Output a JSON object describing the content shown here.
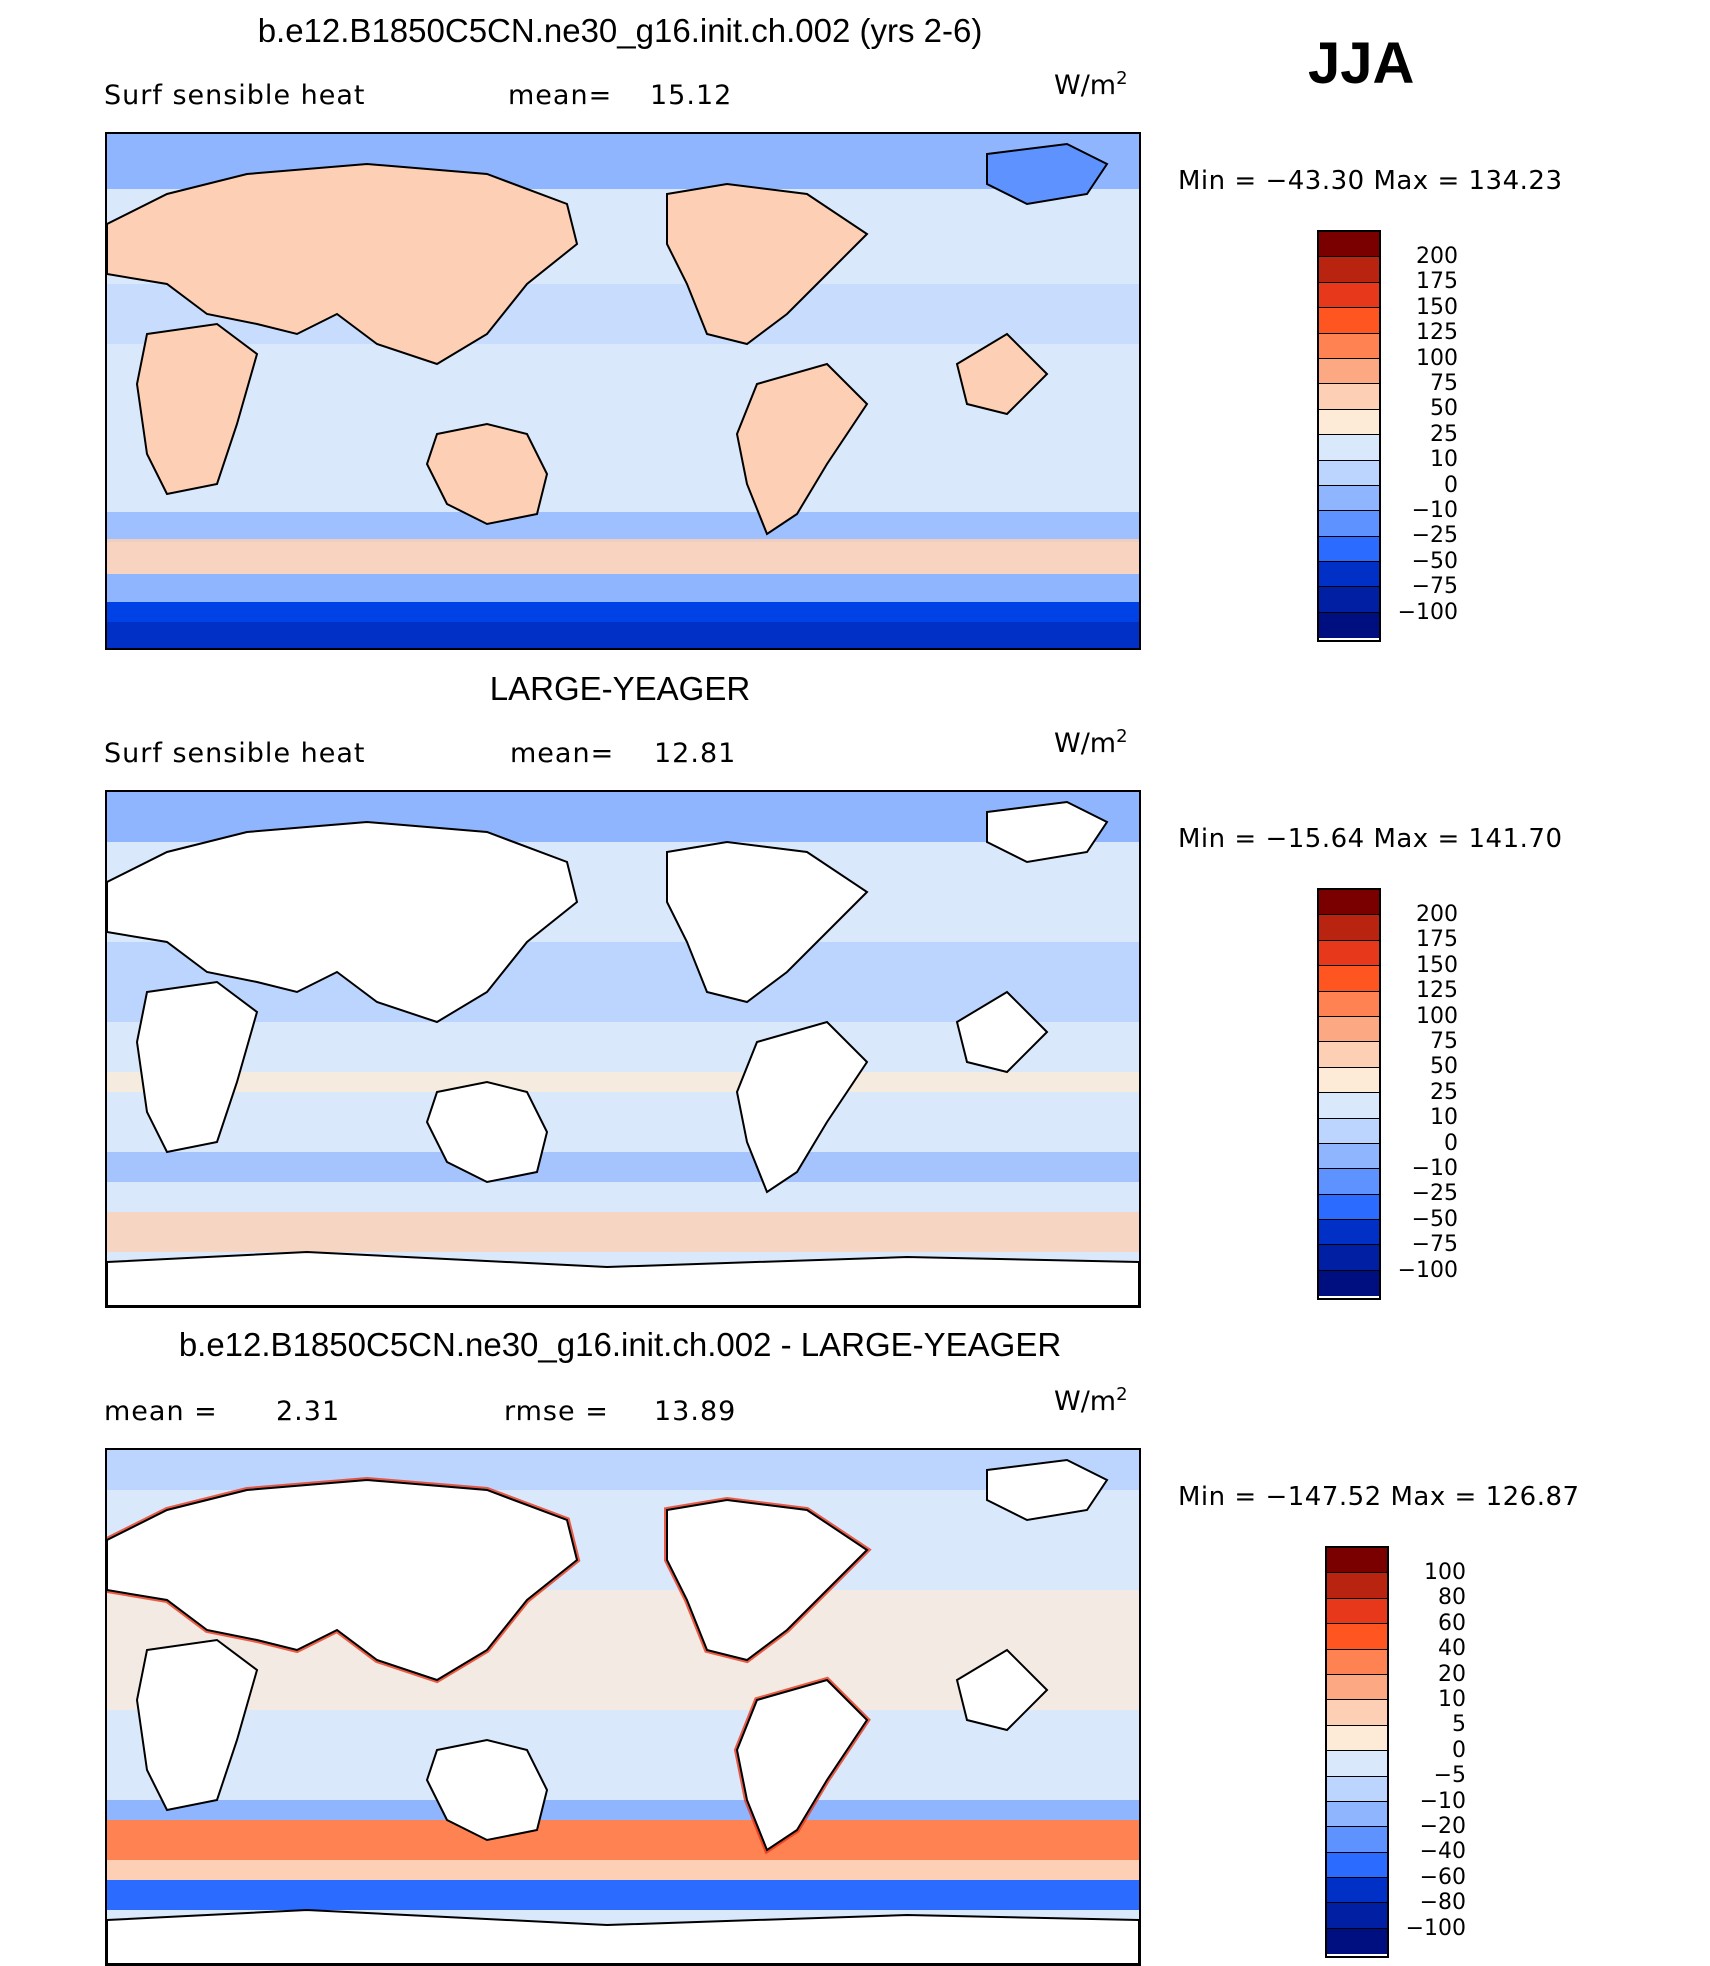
{
  "season": "JJA",
  "colors": {
    "land_blank": "#ffffff",
    "coast": "#000000",
    "scale_1": [
      "#000f80",
      "#001fa3",
      "#0030c6",
      "#0042e6",
      "#2b6bff",
      "#5e93ff",
      "#8fb5ff",
      "#bcd5ff",
      "#d9e8fb",
      "#fdebd8",
      "#fdd0b5",
      "#fca882",
      "#ff8253",
      "#ff5520",
      "#e8381c",
      "#b82410",
      "#7a0000"
    ],
    "scale_3": [
      "#000f80",
      "#001fa3",
      "#0030c6",
      "#0042e6",
      "#2b6bff",
      "#5e93ff",
      "#8fb5ff",
      "#bcd5ff",
      "#d9e8fb",
      "#fdebd8",
      "#fdd0b5",
      "#fca882",
      "#ff8253",
      "#ff5520",
      "#e8381c",
      "#b82410",
      "#7a0000"
    ]
  },
  "panels": [
    {
      "title": "b.e12.B1850C5CN.ne30_g16.init.ch.002 (yrs 2-6)",
      "left_label": "Surf  sensible  heat",
      "stat_label": "mean=",
      "stat_value": "15.12",
      "stat2_label": "",
      "stat2_value": "",
      "units": "W/m",
      "units_sup": "2",
      "min_label": "Min  =",
      "min_value": "−43.30",
      "max_label": "Max  =",
      "max_value": "134.23",
      "colorbar_labels": [
        "200",
        "175",
        "150",
        "125",
        "100",
        "75",
        "50",
        "25",
        "10",
        "0",
        "−10",
        "−25",
        "−50",
        "−75",
        "−100"
      ],
      "map_alt_icon": "surface-sensible-heat-model-map"
    },
    {
      "title": "LARGE-YEAGER",
      "left_label": "Surf  sensible  heat",
      "stat_label": "mean=",
      "stat_value": "12.81",
      "stat2_label": "",
      "stat2_value": "",
      "units": "W/m",
      "units_sup": "2",
      "min_label": "Min  =",
      "min_value": "−15.64",
      "max_label": "Max  =",
      "max_value": "141.70",
      "colorbar_labels": [
        "200",
        "175",
        "150",
        "125",
        "100",
        "75",
        "50",
        "25",
        "10",
        "0",
        "−10",
        "−25",
        "−50",
        "−75",
        "−100"
      ],
      "map_alt_icon": "surface-sensible-heat-obs-map"
    },
    {
      "title": "b.e12.B1850C5CN.ne30_g16.init.ch.002 - LARGE-YEAGER",
      "left_label": "mean  =",
      "stat_label": "",
      "stat_value": "2.31",
      "stat2_label": "rmse  =",
      "stat2_value": "13.89",
      "units": "W/m",
      "units_sup": "2",
      "min_label": "Min  =",
      "min_value": "−147.52",
      "max_label": "Max  =",
      "max_value": "126.87",
      "colorbar_labels": [
        "100",
        "80",
        "60",
        "40",
        "20",
        "10",
        "5",
        "0",
        "−5",
        "−10",
        "−20",
        "−40",
        "−60",
        "−80",
        "−100"
      ],
      "map_alt_icon": "surface-sensible-heat-difference-map"
    }
  ]
}
